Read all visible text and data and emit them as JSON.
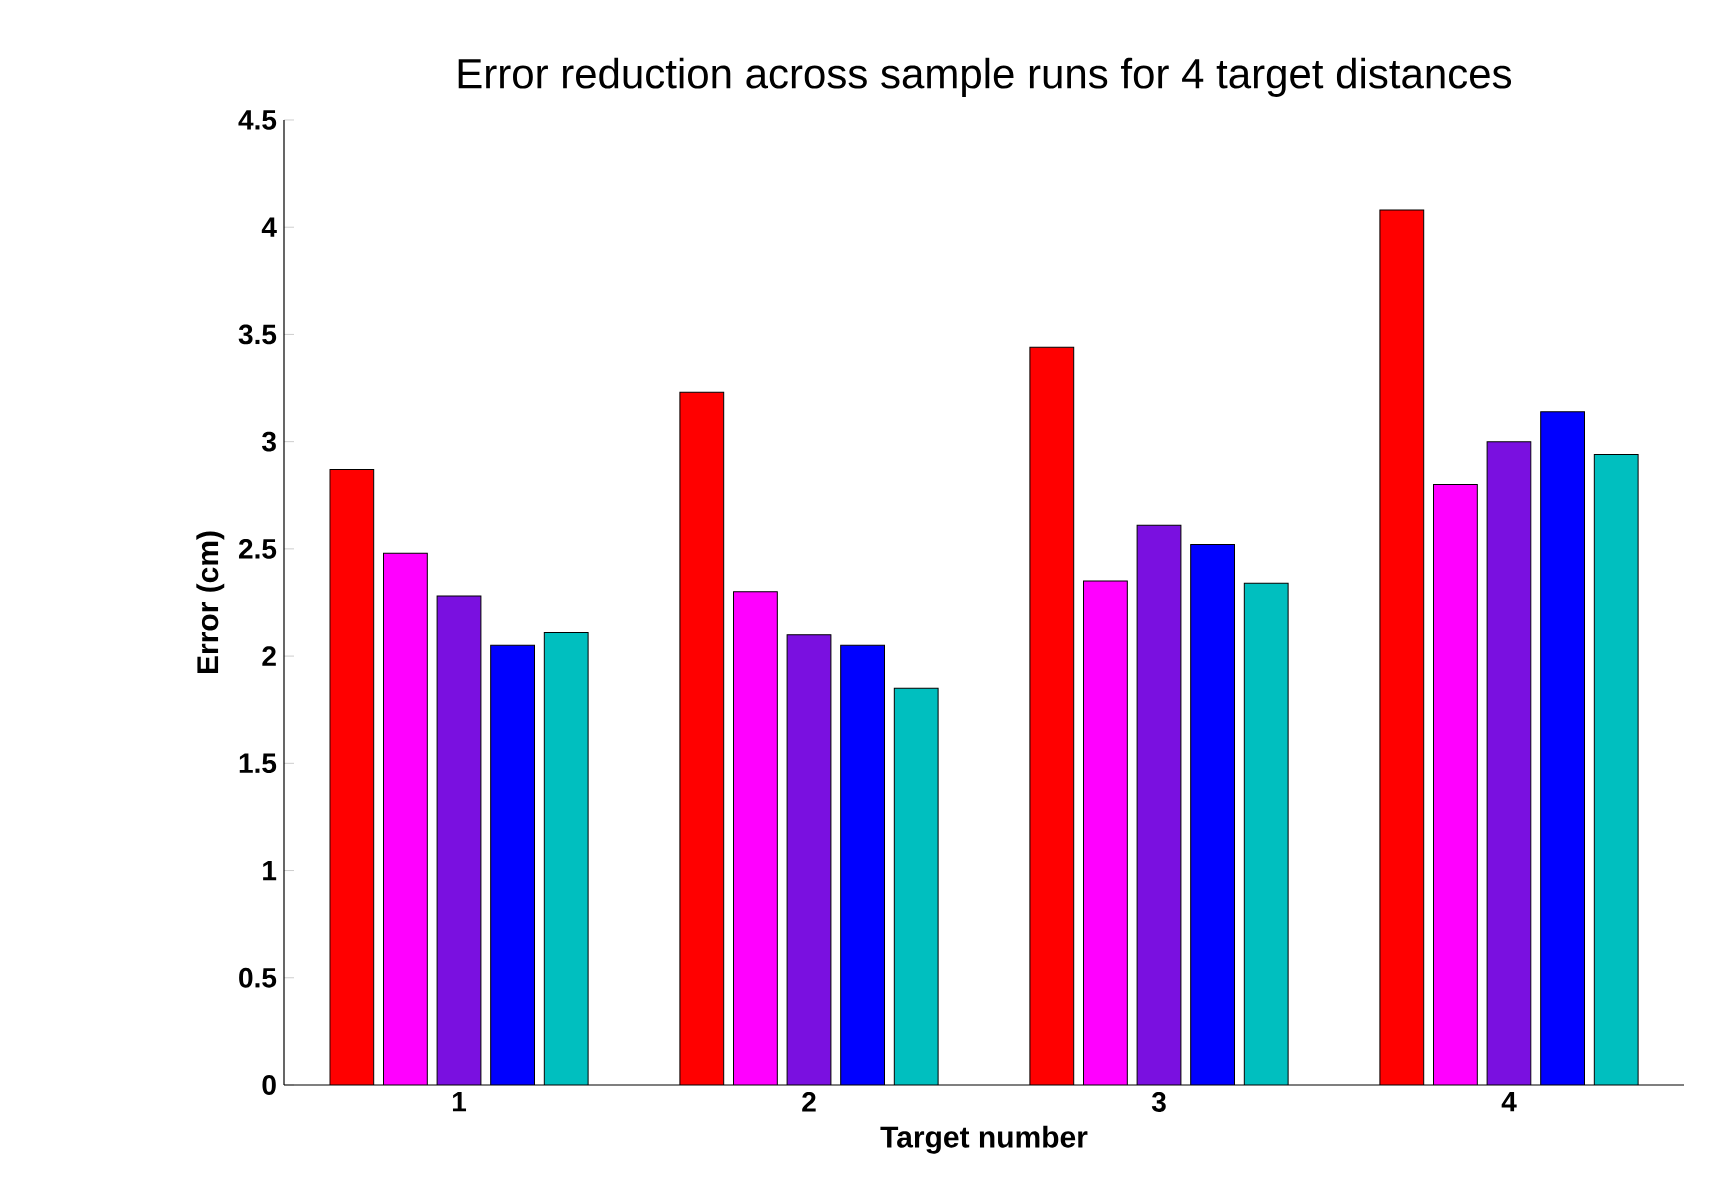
{
  "chart_data": {
    "type": "bar",
    "title": "Error reduction across sample runs for 4 target distances",
    "xlabel": "Target number",
    "ylabel": "Error (cm)",
    "categories": [
      "1",
      "2",
      "3",
      "4"
    ],
    "series": [
      {
        "color": "#ff0000",
        "values": [
          2.87,
          3.23,
          3.44,
          4.08
        ]
      },
      {
        "color": "#ff00ff",
        "values": [
          2.48,
          2.3,
          2.35,
          2.8
        ]
      },
      {
        "color": "#7a10e0",
        "values": [
          2.28,
          2.1,
          2.61,
          3.0
        ]
      },
      {
        "color": "#0000ff",
        "values": [
          2.05,
          2.05,
          2.52,
          3.14
        ]
      },
      {
        "color": "#00bfbf",
        "values": [
          2.11,
          1.85,
          2.34,
          2.94
        ]
      }
    ],
    "ylim": [
      0,
      4.5
    ],
    "yticks": [
      0,
      0.5,
      1,
      1.5,
      2,
      2.5,
      3,
      3.5,
      4,
      4.5
    ]
  }
}
